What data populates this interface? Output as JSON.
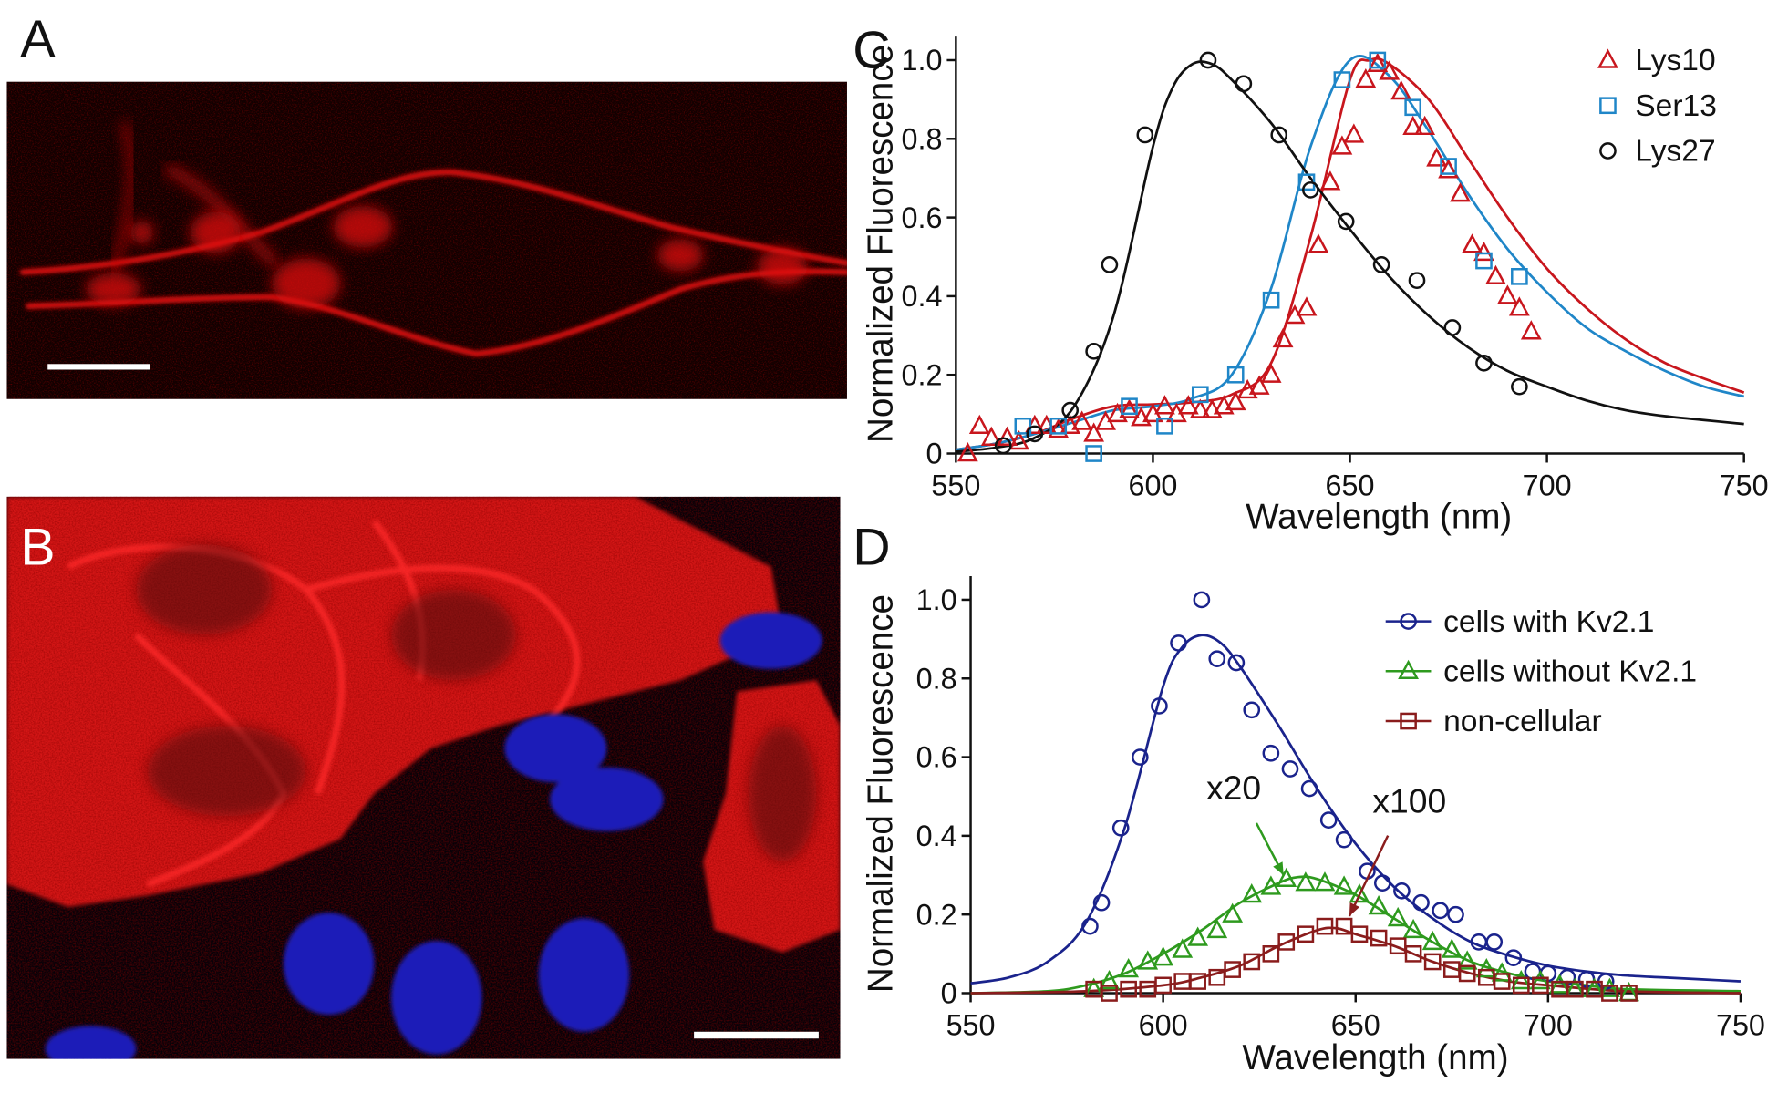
{
  "images": [
    {
      "label": "A"
    },
    {
      "label": "B"
    }
  ],
  "chart_data": [
    {
      "type": "scatter",
      "panel": "C",
      "x_label": "Wavelength (nm)",
      "y_label": "Normalized Fluorescence",
      "xlim": [
        550,
        750
      ],
      "ylim": [
        0,
        1.06
      ],
      "xticks": [
        550,
        600,
        650,
        700,
        750
      ],
      "yticks": [
        0,
        0.2,
        0.4,
        0.6,
        0.8,
        {
          "value": 1,
          "label": "1.0"
        }
      ],
      "legend": "upper right",
      "series": [
        {
          "name": "Lys10",
          "color": "#c8161d",
          "marker": "triangle",
          "x": [
            553,
            556,
            559,
            563,
            566,
            570,
            573,
            576,
            579,
            582,
            585,
            588,
            591,
            594,
            597,
            600,
            603,
            606,
            609,
            612,
            615,
            618,
            621,
            624,
            627,
            630,
            633,
            636,
            639,
            642,
            645,
            648,
            651,
            654,
            657,
            660,
            663,
            666,
            669,
            672,
            675,
            678,
            681,
            684,
            687,
            690,
            693,
            696
          ],
          "values": [
            0,
            0.07,
            0.04,
            0.04,
            0.03,
            0.07,
            0.07,
            0.06,
            0.07,
            0.08,
            0.05,
            0.08,
            0.1,
            0.11,
            0.09,
            0.1,
            0.12,
            0.1,
            0.12,
            0.11,
            0.11,
            0.12,
            0.13,
            0.16,
            0.17,
            0.2,
            0.29,
            0.35,
            0.37,
            0.53,
            0.69,
            0.78,
            0.81,
            0.95,
            0.99,
            0.97,
            0.92,
            0.83,
            0.83,
            0.75,
            0.72,
            0.66,
            0.53,
            0.51,
            0.45,
            0.4,
            0.37,
            0.31
          ],
          "fit": {
            "x": [
              550,
              560,
              570,
              580,
              590,
              600,
              610,
              620,
              630,
              640,
              650,
              655,
              660,
              670,
              680,
              690,
              700,
              710,
              720,
              730,
              740,
              750
            ],
            "values": [
              0.01,
              0.025,
              0.05,
              0.09,
              0.12,
              0.125,
              0.13,
              0.15,
              0.23,
              0.55,
              0.95,
              1.0,
              0.99,
              0.9,
              0.75,
              0.6,
              0.47,
              0.37,
              0.29,
              0.23,
              0.19,
              0.155
            ]
          }
        },
        {
          "name": "Ser13",
          "color": "#1f86c8",
          "marker": "square",
          "x": [
            567,
            576,
            585,
            594,
            603,
            612,
            621,
            630,
            639,
            648,
            657,
            666,
            675,
            684,
            693
          ],
          "values": [
            0.07,
            0.07,
            0,
            0.12,
            0.07,
            0.15,
            0.2,
            0.39,
            0.69,
            0.95,
            1.0,
            0.88,
            0.73,
            0.49,
            0.45
          ],
          "fit": {
            "x": [
              550,
              560,
              570,
              580,
              590,
              600,
              610,
              620,
              630,
              640,
              650,
              660,
              670,
              680,
              690,
              700,
              710,
              720,
              730,
              740,
              750
            ],
            "values": [
              0.01,
              0.025,
              0.05,
              0.08,
              0.11,
              0.12,
              0.14,
              0.2,
              0.42,
              0.78,
              1.0,
              0.96,
              0.82,
              0.66,
              0.52,
              0.41,
              0.32,
              0.26,
              0.21,
              0.17,
              0.145
            ]
          }
        },
        {
          "name": "Lys27",
          "color": "#111111",
          "marker": "circle",
          "x": [
            562,
            570,
            579,
            585,
            589,
            598,
            614,
            623,
            632,
            640,
            649,
            658,
            667,
            676,
            684,
            693
          ],
          "values": [
            0.02,
            0.05,
            0.11,
            0.26,
            0.48,
            0.81,
            1.0,
            0.94,
            0.81,
            0.67,
            0.59,
            0.48,
            0.44,
            0.32,
            0.23,
            0.17
          ],
          "fit": {
            "x": [
              550,
              560,
              570,
              580,
              590,
              600,
              605,
              610,
              615,
              620,
              630,
              640,
              650,
              660,
              670,
              680,
              690,
              700,
              710,
              720,
              730,
              740,
              750
            ],
            "values": [
              0.005,
              0.015,
              0.04,
              0.12,
              0.35,
              0.78,
              0.93,
              0.99,
              0.99,
              0.95,
              0.84,
              0.7,
              0.57,
              0.45,
              0.35,
              0.27,
              0.21,
              0.17,
              0.135,
              0.11,
              0.095,
              0.085,
              0.075
            ]
          }
        }
      ]
    },
    {
      "type": "scatter",
      "panel": "D",
      "x_label": "Wavelength (nm)",
      "y_label": "Normalized Fluorescence",
      "xlim": [
        550,
        750
      ],
      "ylim": [
        0,
        1.06
      ],
      "xticks": [
        550,
        600,
        650,
        700,
        750
      ],
      "yticks": [
        0,
        0.2,
        0.4,
        0.6,
        0.8,
        {
          "value": 1,
          "label": "1.0"
        }
      ],
      "legend": "upper right",
      "annotations": [
        {
          "text": "x20",
          "color": "#2e9a1e"
        },
        {
          "text": "x100",
          "color": "#8a1c1c"
        }
      ],
      "series": [
        {
          "name": "cells with Kv2.1",
          "color": "#1a238c",
          "marker": "circle",
          "x": [
            581,
            584,
            589,
            594,
            599,
            604,
            610,
            614,
            619,
            623,
            628,
            633,
            638,
            643,
            647,
            653,
            657,
            662,
            667,
            672,
            676,
            682,
            686,
            691,
            696,
            700,
            705,
            710,
            715
          ],
          "values": [
            0.17,
            0.23,
            0.42,
            0.6,
            0.73,
            0.89,
            1.0,
            0.85,
            0.84,
            0.72,
            0.61,
            0.57,
            0.52,
            0.44,
            0.39,
            0.31,
            0.28,
            0.26,
            0.23,
            0.21,
            0.2,
            0.13,
            0.13,
            0.09,
            0.055,
            0.05,
            0.04,
            0.035,
            0.03
          ],
          "fit": {
            "x": [
              550,
              560,
              570,
              580,
              590,
              600,
              605,
              610,
              615,
              620,
              630,
              640,
              650,
              660,
              670,
              680,
              690,
              700,
              710,
              720,
              730,
              740,
              750
            ],
            "values": [
              0.025,
              0.04,
              0.08,
              0.18,
              0.42,
              0.78,
              0.88,
              0.91,
              0.89,
              0.83,
              0.68,
              0.52,
              0.38,
              0.27,
              0.19,
              0.13,
              0.095,
              0.07,
              0.055,
              0.045,
              0.04,
              0.035,
              0.03
            ]
          }
        },
        {
          "name": "cells without Kv2.1",
          "color": "#2e9a1e",
          "marker": "triangle",
          "x": [
            582,
            586,
            591,
            596,
            600,
            605,
            609,
            614,
            618,
            623,
            628,
            632,
            637,
            642,
            647,
            651,
            656,
            661,
            665,
            670,
            675,
            679,
            684,
            688,
            693,
            698,
            703,
            707,
            712,
            716,
            721
          ],
          "values": [
            0.01,
            0.03,
            0.06,
            0.08,
            0.09,
            0.11,
            0.14,
            0.16,
            0.2,
            0.25,
            0.27,
            0.29,
            0.28,
            0.28,
            0.27,
            0.25,
            0.22,
            0.19,
            0.16,
            0.13,
            0.11,
            0.08,
            0.06,
            0.05,
            0.03,
            0.03,
            0.02,
            0.01,
            0.01,
            0.01,
            0
          ],
          "fit": {
            "x": [
              550,
              570,
              580,
              590,
              600,
              610,
              620,
              630,
              635,
              640,
              650,
              660,
              670,
              680,
              690,
              700,
              710,
              720,
              750
            ],
            "values": [
              0,
              0.005,
              0.02,
              0.05,
              0.1,
              0.16,
              0.23,
              0.28,
              0.295,
              0.29,
              0.25,
              0.19,
              0.13,
              0.08,
              0.05,
              0.03,
              0.02,
              0.01,
              0.005
            ]
          }
        },
        {
          "name": "non-cellular",
          "color": "#8a1c1c",
          "marker": "square",
          "x": [
            582,
            586,
            591,
            596,
            600,
            605,
            609,
            614,
            618,
            623,
            628,
            632,
            637,
            642,
            647,
            651,
            656,
            661,
            665,
            670,
            675,
            679,
            684,
            688,
            693,
            698,
            703,
            707,
            712,
            716,
            721
          ],
          "values": [
            0.01,
            0,
            0.01,
            0.01,
            0.02,
            0.03,
            0.03,
            0.04,
            0.06,
            0.08,
            0.1,
            0.13,
            0.15,
            0.17,
            0.17,
            0.15,
            0.14,
            0.12,
            0.1,
            0.08,
            0.06,
            0.05,
            0.04,
            0.03,
            0.02,
            0.02,
            0.01,
            0.01,
            0.01,
            0,
            0
          ],
          "fit": {
            "x": [
              550,
              580,
              600,
              610,
              620,
              630,
              640,
              645,
              650,
              660,
              670,
              680,
              690,
              700,
              720,
              750
            ],
            "values": [
              0,
              0.005,
              0.02,
              0.04,
              0.07,
              0.12,
              0.16,
              0.165,
              0.15,
              0.12,
              0.08,
              0.05,
              0.03,
              0.02,
              0.005,
              0
            ]
          }
        }
      ]
    }
  ]
}
